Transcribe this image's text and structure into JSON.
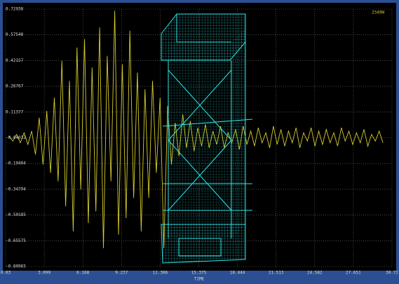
{
  "chart_data": {
    "type": "line",
    "annotation": "2349N",
    "x_label": "TIME",
    "xlim": [
      0.03,
      30.72
    ],
    "xticks": [
      0.03,
      3.099,
      6.168,
      9.237,
      12.306,
      15.375,
      18.444,
      21.513,
      24.582,
      27.651,
      30.72
    ],
    "ylim": [
      -0.80965,
      0.72938
    ],
    "yticks": [
      0.72938,
      0.57548,
      0.42157,
      0.26767,
      0.11377,
      -0.04012,
      -0.19404,
      -0.34794,
      -0.50185,
      -0.65575,
      -0.80965
    ],
    "grid": true,
    "x": [
      0.3,
      0.6,
      0.9,
      1.2,
      1.5,
      1.8,
      2.1,
      2.4,
      2.7,
      3.0,
      3.3,
      3.6,
      3.9,
      4.2,
      4.5,
      4.8,
      5.1,
      5.4,
      5.7,
      6.0,
      6.3,
      6.6,
      6.9,
      7.2,
      7.5,
      7.8,
      8.1,
      8.4,
      8.7,
      9.0,
      9.3,
      9.6,
      9.9,
      10.2,
      10.5,
      10.8,
      11.1,
      11.4,
      11.7,
      12.0,
      12.3,
      12.6,
      12.9,
      13.2,
      13.5,
      13.8,
      14.1,
      14.4,
      14.7,
      15.0,
      15.3,
      15.6,
      15.9,
      16.2,
      16.5,
      16.8,
      17.1,
      17.4,
      17.7,
      18.0,
      18.3,
      18.6,
      18.9,
      19.2,
      19.5,
      19.8,
      20.1,
      20.4,
      20.7,
      21.0,
      21.3,
      21.6,
      21.9,
      22.2,
      22.5,
      22.8,
      23.1,
      23.4,
      23.7,
      24.0,
      24.3,
      24.6,
      24.9,
      25.2,
      25.5,
      25.8,
      26.1,
      26.4,
      26.7,
      27.0,
      27.3,
      27.6,
      27.9,
      28.2,
      28.5,
      28.8,
      29.1,
      29.4,
      29.7,
      30.0
    ],
    "series": [
      {
        "color": "#d6cc2a",
        "values": [
          -0.03,
          -0.06,
          -0.02,
          -0.07,
          -0.01,
          -0.08,
          0.0,
          -0.14,
          0.08,
          -0.2,
          0.12,
          -0.25,
          0.2,
          -0.3,
          0.42,
          -0.45,
          0.3,
          -0.6,
          0.5,
          -0.35,
          0.55,
          -0.55,
          0.38,
          -0.48,
          0.62,
          -0.7,
          0.45,
          -0.3,
          0.72,
          -0.62,
          0.4,
          -0.52,
          0.6,
          -0.4,
          0.35,
          -0.6,
          0.25,
          -0.4,
          0.3,
          -0.25,
          0.2,
          -0.7,
          0.15,
          -0.2,
          0.05,
          -0.15,
          0.1,
          -0.1,
          0.06,
          -0.12,
          0.02,
          -0.09,
          0.04,
          -0.1,
          0.0,
          -0.08,
          0.03,
          -0.1,
          -0.01,
          -0.07,
          0.01,
          -0.11,
          0.03,
          -0.08,
          0.0,
          -0.09,
          0.02,
          -0.07,
          -0.01,
          -0.1,
          0.03,
          -0.08,
          0.01,
          -0.09,
          0.0,
          -0.07,
          0.02,
          -0.1,
          -0.01,
          -0.06,
          0.02,
          -0.09,
          0.0,
          -0.08,
          0.01,
          -0.07,
          -0.01,
          -0.09,
          0.02,
          -0.06,
          0.0,
          -0.08,
          -0.01,
          -0.07,
          0.01,
          -0.09,
          -0.02,
          -0.06,
          0.0,
          -0.07
        ]
      }
    ]
  }
}
